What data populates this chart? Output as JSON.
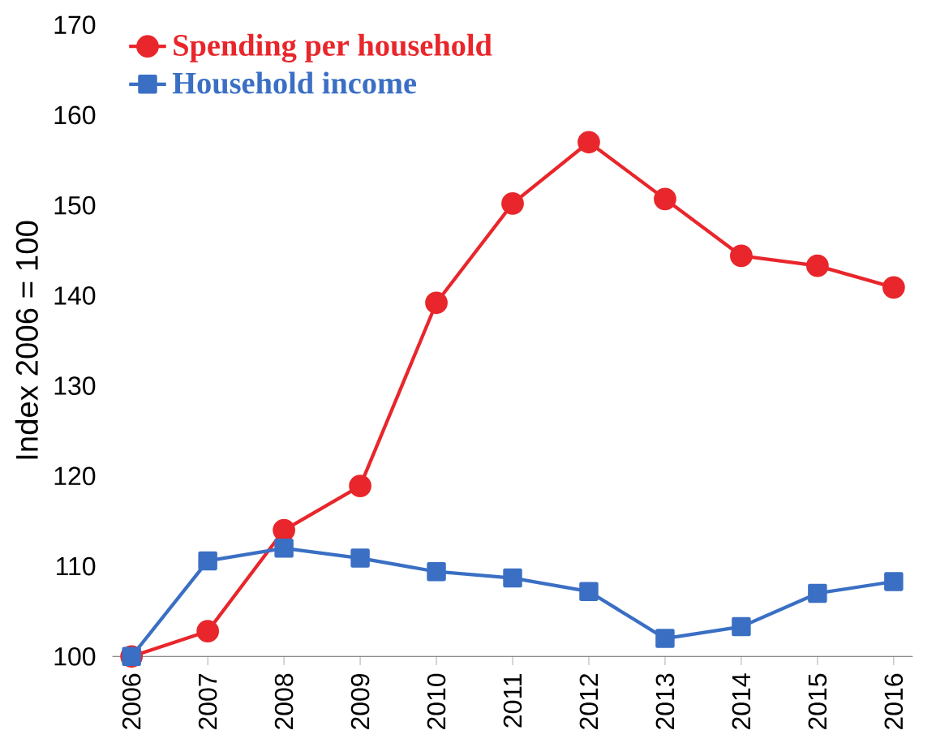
{
  "chart_data": {
    "type": "line",
    "ylabel": "Index 2006 = 100",
    "categories": [
      "2006",
      "2007",
      "2008",
      "2009",
      "2010",
      "2011",
      "2012",
      "2013",
      "2014",
      "2015",
      "2016"
    ],
    "series": [
      {
        "name": "Spending per household",
        "color": "#e8262b",
        "marker": "circle",
        "values": [
          100,
          102.8,
          114,
          118.9,
          139.2,
          150.2,
          157,
          150.7,
          144.4,
          143.3,
          140.9
        ]
      },
      {
        "name": "Household income",
        "color": "#3a6fc4",
        "marker": "square",
        "values": [
          100,
          110.6,
          112,
          110.9,
          109.4,
          108.7,
          107.2,
          102,
          103.3,
          107,
          108.3
        ]
      }
    ],
    "ylim": [
      100,
      170
    ],
    "yticks": [
      100,
      110,
      120,
      130,
      140,
      150,
      160,
      170
    ],
    "grid": false,
    "legend": "top left",
    "line_style": "solid"
  }
}
